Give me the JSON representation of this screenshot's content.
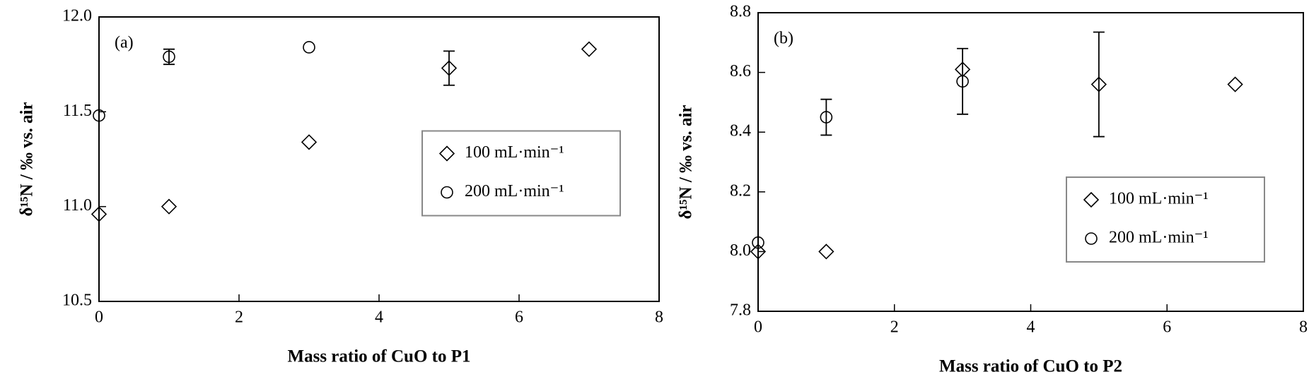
{
  "chart_data": [
    {
      "type": "scatter",
      "annotation": "(a)",
      "xlabel": "Mass ratio of CuO to P1",
      "ylabel": "δ¹⁵N / ‰ vs. air",
      "xlim": [
        0,
        8
      ],
      "xticks": [
        0,
        2,
        4,
        6,
        8
      ],
      "ylim": [
        10.5,
        12
      ],
      "yticks": [
        10.5,
        {
          "value": 11,
          "label": "11.0"
        },
        11.5,
        {
          "value": 12,
          "label": "12.0"
        }
      ],
      "legend": "center right",
      "series": [
        {
          "name": "100 mL·min⁻¹",
          "marker": "diamond",
          "color": "#000000",
          "x": [
            0,
            1,
            3,
            5,
            7
          ],
          "values": [
            10.96,
            11.0,
            11.34,
            11.73,
            11.83
          ],
          "errors": [
            null,
            null,
            null,
            0.09,
            null
          ]
        },
        {
          "name": "200 mL·min⁻¹",
          "marker": "circle",
          "color": "#000000",
          "x": [
            0,
            1,
            3
          ],
          "values": [
            11.48,
            11.79,
            11.84
          ],
          "errors": [
            null,
            0.04,
            null
          ]
        }
      ]
    },
    {
      "type": "scatter",
      "annotation": "(b)",
      "xlabel": "Mass ratio of CuO to P2",
      "ylabel": "δ¹⁵N / ‰ vs. air",
      "xlim": [
        0,
        8
      ],
      "xticks": [
        0,
        2,
        4,
        6,
        8
      ],
      "ylim": [
        7.8,
        8.8
      ],
      "yticks": [
        7.8,
        {
          "value": 8,
          "label": "8.0"
        },
        8.2,
        8.4,
        8.6,
        8.8
      ],
      "legend": "lower right",
      "series": [
        {
          "name": "100 mL·min⁻¹",
          "marker": "diamond",
          "color": "#000000",
          "x": [
            0,
            1,
            3,
            5,
            7
          ],
          "values": [
            8.0,
            8.0,
            8.61,
            8.56,
            8.56
          ],
          "errors": [
            null,
            null,
            null,
            0.175,
            null
          ]
        },
        {
          "name": "200 mL·min⁻¹",
          "marker": "circle",
          "color": "#000000",
          "x": [
            0,
            1,
            3
          ],
          "values": [
            8.03,
            8.45,
            8.57
          ],
          "errors": [
            null,
            0.06,
            0.11
          ]
        }
      ]
    }
  ]
}
